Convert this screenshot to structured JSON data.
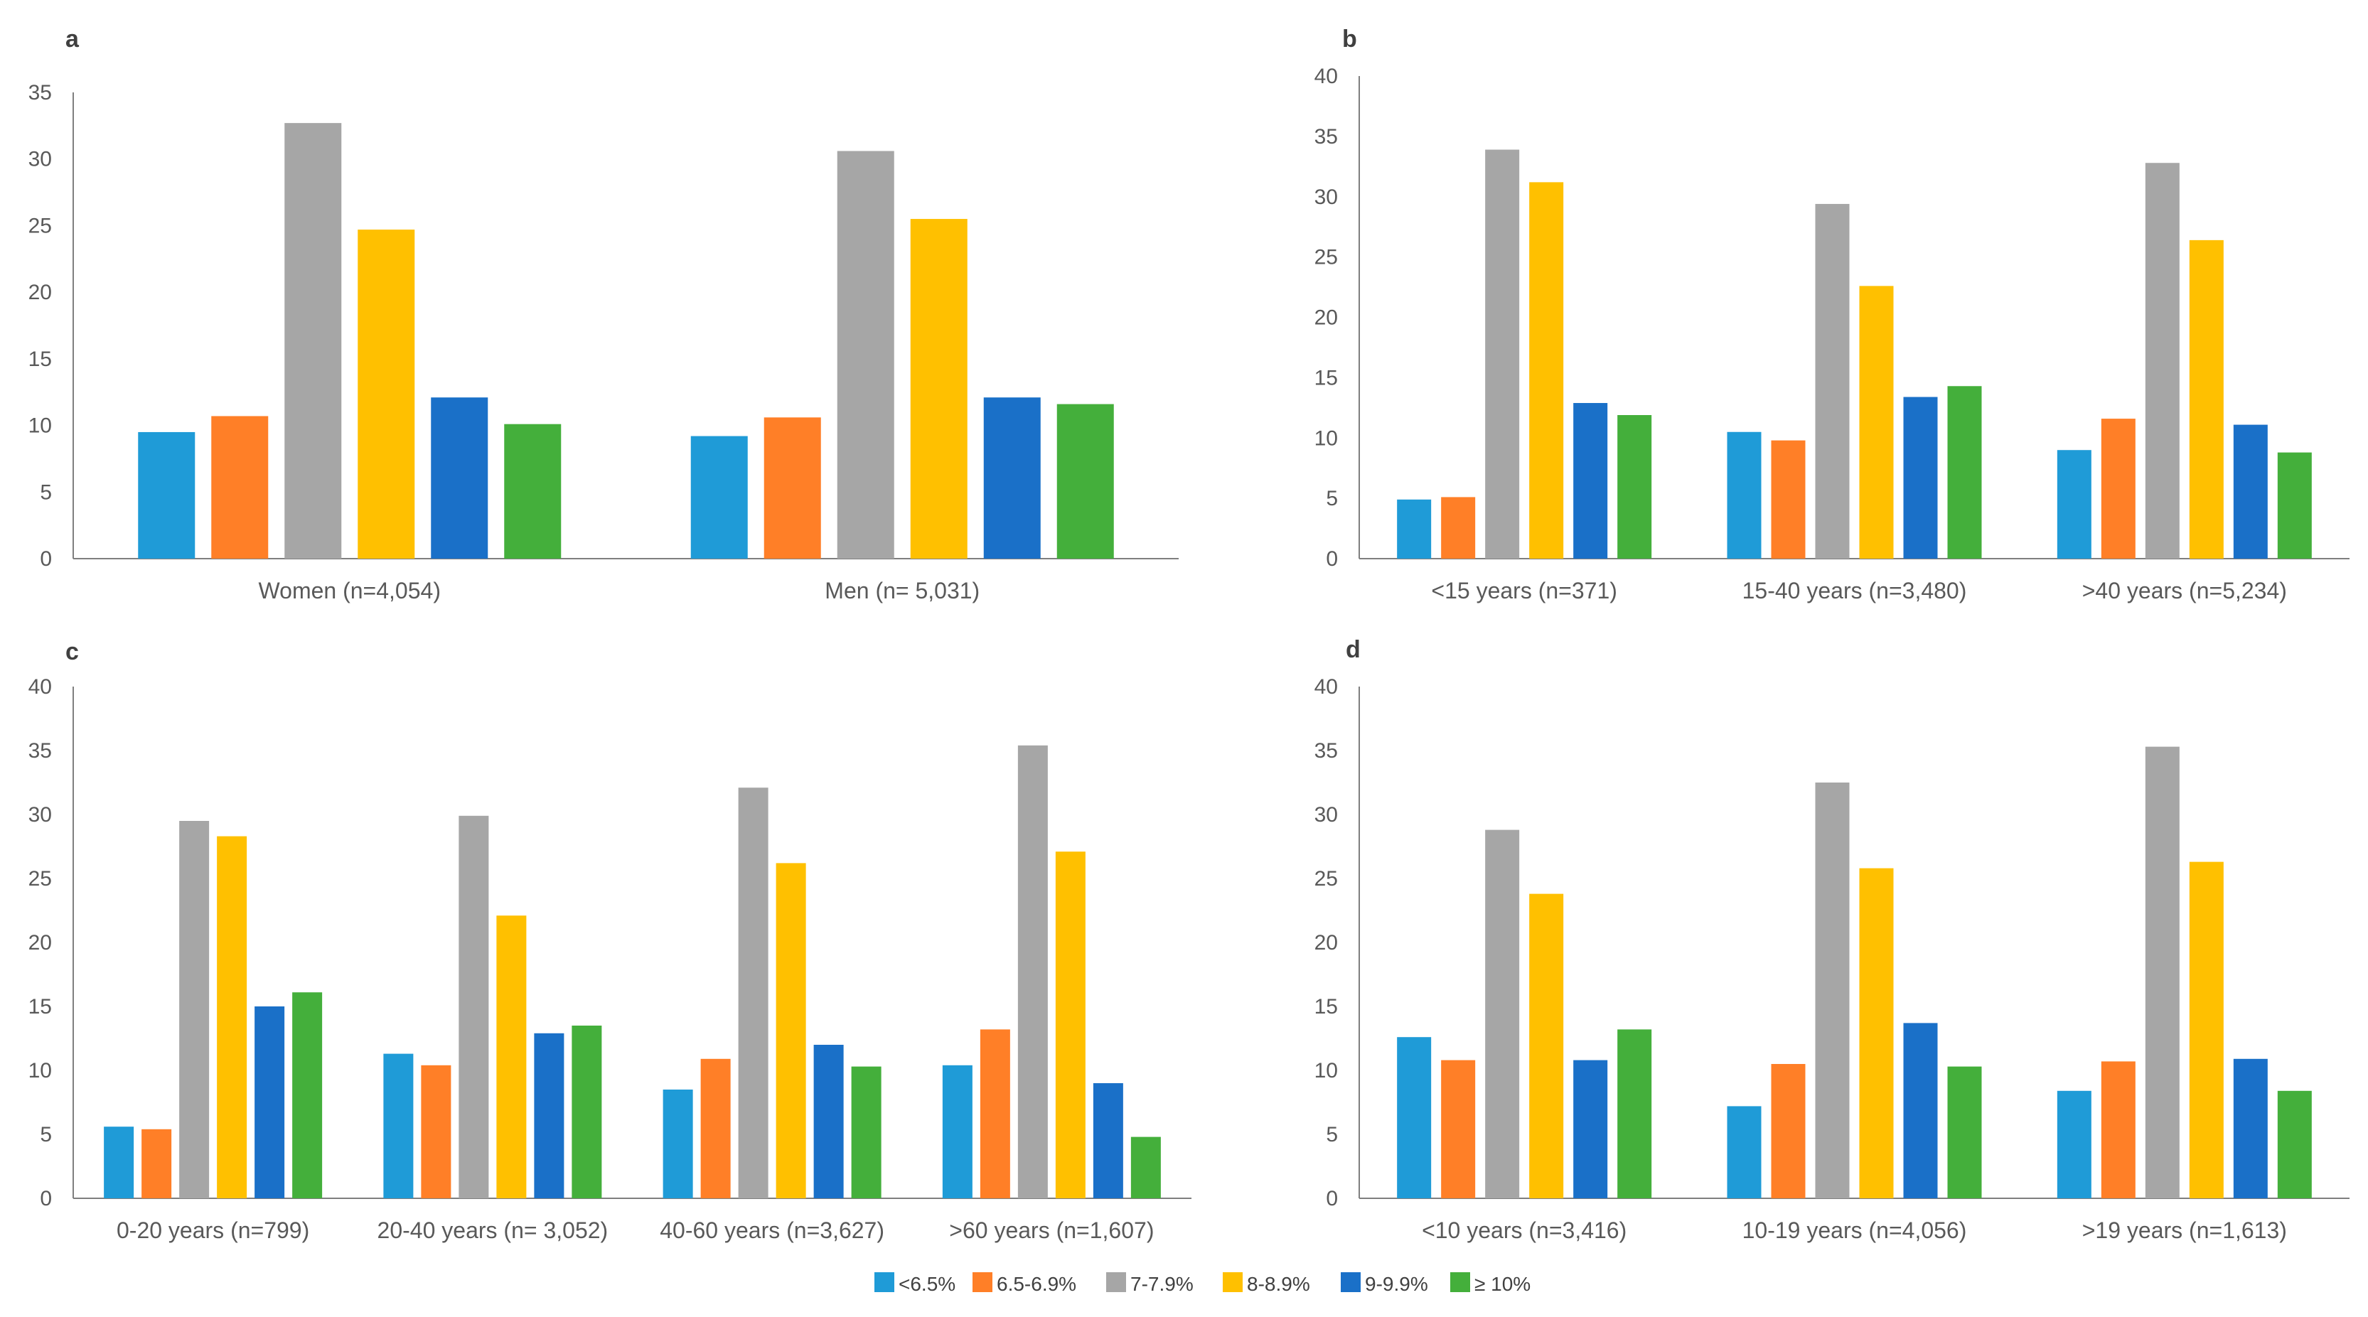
{
  "series_colors": [
    "#1F9BD7",
    "#FF7F27",
    "#A6A6A6",
    "#FFC000",
    "#1A70C8",
    "#44AF3B"
  ],
  "legend": [
    "<6.5%",
    "6.5-6.9%",
    "7-7.9%",
    "8-8.9%",
    "9-9.9%",
    "≥ 10%"
  ],
  "chart_data": [
    {
      "type": "bar",
      "panel_label": "a",
      "categories": [
        "Women (n=4,054)",
        "Men (n= 5,031)"
      ],
      "ylim": [
        0,
        35
      ],
      "yticks": [
        "0",
        "5",
        "10",
        "15",
        "20",
        "25",
        "30",
        "35"
      ],
      "series": [
        {
          "name": "<6.5%",
          "values": [
            9.5,
            9.2
          ]
        },
        {
          "name": "6.5-6.9%",
          "values": [
            10.7,
            10.6
          ]
        },
        {
          "name": "7-7.9%",
          "values": [
            32.7,
            30.6
          ]
        },
        {
          "name": "8-8.9%",
          "values": [
            24.7,
            25.5
          ]
        },
        {
          "name": "9-9.9%",
          "values": [
            12.1,
            12.1
          ]
        },
        {
          "name": "≥ 10%",
          "values": [
            10.1,
            11.6
          ]
        }
      ]
    },
    {
      "type": "bar",
      "panel_label": "b",
      "categories": [
        "<15 years (n=371)",
        "15-40 years (n=3,480)",
        ">40 years (n=5,234)"
      ],
      "ylim": [
        0,
        40
      ],
      "yticks": [
        "0",
        "5",
        "10",
        "15",
        "20",
        "25",
        "30",
        "35",
        "40"
      ],
      "series": [
        {
          "name": "<6.5%",
          "values": [
            4.9,
            10.5,
            9.0
          ]
        },
        {
          "name": "6.5-6.9%",
          "values": [
            5.1,
            9.8,
            11.6
          ]
        },
        {
          "name": "7-7.9%",
          "values": [
            33.9,
            29.4,
            32.8
          ]
        },
        {
          "name": "8-8.9%",
          "values": [
            31.2,
            22.6,
            26.4
          ]
        },
        {
          "name": "9-9.9%",
          "values": [
            12.9,
            13.4,
            11.1
          ]
        },
        {
          "name": "≥ 10%",
          "values": [
            11.9,
            14.3,
            8.8
          ]
        }
      ]
    },
    {
      "type": "bar",
      "panel_label": "c",
      "categories": [
        "0-20 years (n=799)",
        "20-40 years (n= 3,052)",
        "40-60 years (n=3,627)",
        ">60 years (n=1,607)"
      ],
      "ylim": [
        0,
        40
      ],
      "yticks": [
        "0",
        "5",
        "10",
        "15",
        "20",
        "25",
        "30",
        "35",
        "40"
      ],
      "series": [
        {
          "name": "<6.5%",
          "values": [
            5.6,
            11.3,
            8.5,
            10.4
          ]
        },
        {
          "name": "6.5-6.9%",
          "values": [
            5.4,
            10.4,
            10.9,
            13.2
          ]
        },
        {
          "name": "7-7.9%",
          "values": [
            29.5,
            29.9,
            32.1,
            35.4
          ]
        },
        {
          "name": "8-8.9%",
          "values": [
            28.3,
            22.1,
            26.2,
            27.1
          ]
        },
        {
          "name": "9-9.9%",
          "values": [
            15.0,
            12.9,
            12.0,
            9.0
          ]
        },
        {
          "name": "≥ 10%",
          "values": [
            16.1,
            13.5,
            10.3,
            4.8
          ]
        }
      ]
    },
    {
      "type": "bar",
      "panel_label": "d",
      "categories": [
        "<10 years (n=3,416)",
        "10-19 years (n=4,056)",
        ">19 years (n=1,613)"
      ],
      "ylim": [
        0,
        40
      ],
      "yticks": [
        "0",
        "5",
        "10",
        "15",
        "20",
        "25",
        "30",
        "35",
        "40"
      ],
      "series": [
        {
          "name": "<6.5%",
          "values": [
            12.6,
            7.2,
            8.4
          ]
        },
        {
          "name": "6.5-6.9%",
          "values": [
            10.8,
            10.5,
            10.7
          ]
        },
        {
          "name": "7-7.9%",
          "values": [
            28.8,
            32.5,
            35.3
          ]
        },
        {
          "name": "8-8.9%",
          "values": [
            23.8,
            25.8,
            26.3
          ]
        },
        {
          "name": "9-9.9%",
          "values": [
            10.8,
            13.7,
            10.9
          ]
        },
        {
          "name": "≥ 10%",
          "values": [
            13.2,
            10.3,
            8.4
          ]
        }
      ]
    }
  ]
}
